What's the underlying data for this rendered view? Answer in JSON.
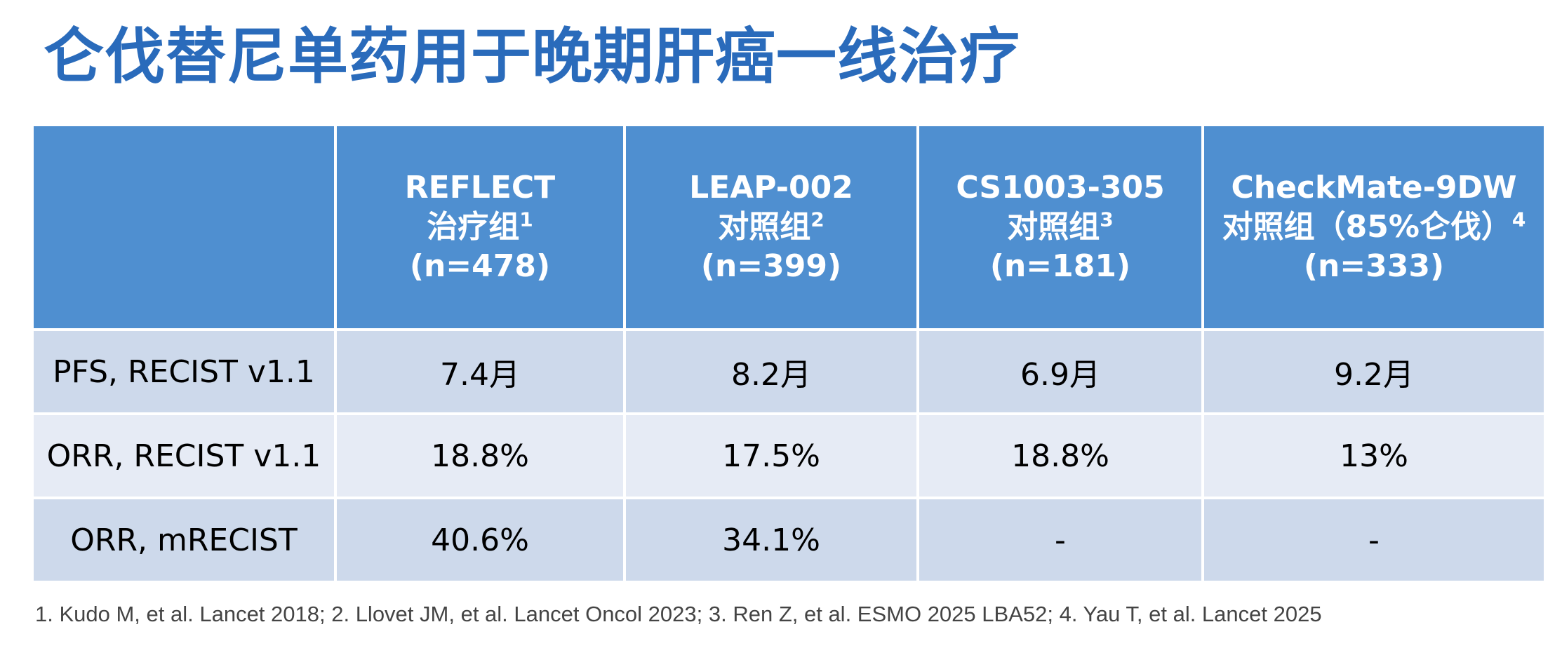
{
  "title": "仑伐替尼单药用于晚期肝癌一线治疗",
  "table": {
    "header": [
      {
        "l1": "",
        "l2": "",
        "sup": "",
        "l3": ""
      },
      {
        "l1": "REFLECT",
        "l2": "治疗组",
        "sup": "1",
        "l3": "(n=478)"
      },
      {
        "l1": "LEAP-002",
        "l2": "对照组",
        "sup": "2",
        "l3": "(n=399)"
      },
      {
        "l1": "CS1003-305",
        "l2": "对照组",
        "sup": "3",
        "l3": "(n=181)"
      },
      {
        "l1": "CheckMate-9DW",
        "l2": "对照组（85%仑伐）",
        "sup": "4",
        "l3": "(n=333)"
      }
    ],
    "rows": [
      {
        "label": "PFS, RECIST v1.1",
        "cells": [
          "7.4月",
          "8.2月",
          "6.9月",
          "9.2月"
        ]
      },
      {
        "label": "ORR, RECIST v1.1",
        "cells": [
          "18.8%",
          "17.5%",
          "18.8%",
          "13%"
        ]
      },
      {
        "label": "ORR, mRECIST",
        "cells": [
          "40.6%",
          "34.1%",
          "-",
          "-"
        ]
      }
    ]
  },
  "colors": {
    "title": "#2a6bbb",
    "header_bg": "#4f8fd0",
    "row_dark": "#cdd9eb",
    "row_light": "#e6ebf5"
  },
  "footnote": "1. Kudo M, et al. Lancet 2018; 2. Llovet JM, et al. Lancet Oncol 2023; 3. Ren Z, et al. ESMO 2025 LBA52; 4. Yau T, et al. Lancet 2025"
}
